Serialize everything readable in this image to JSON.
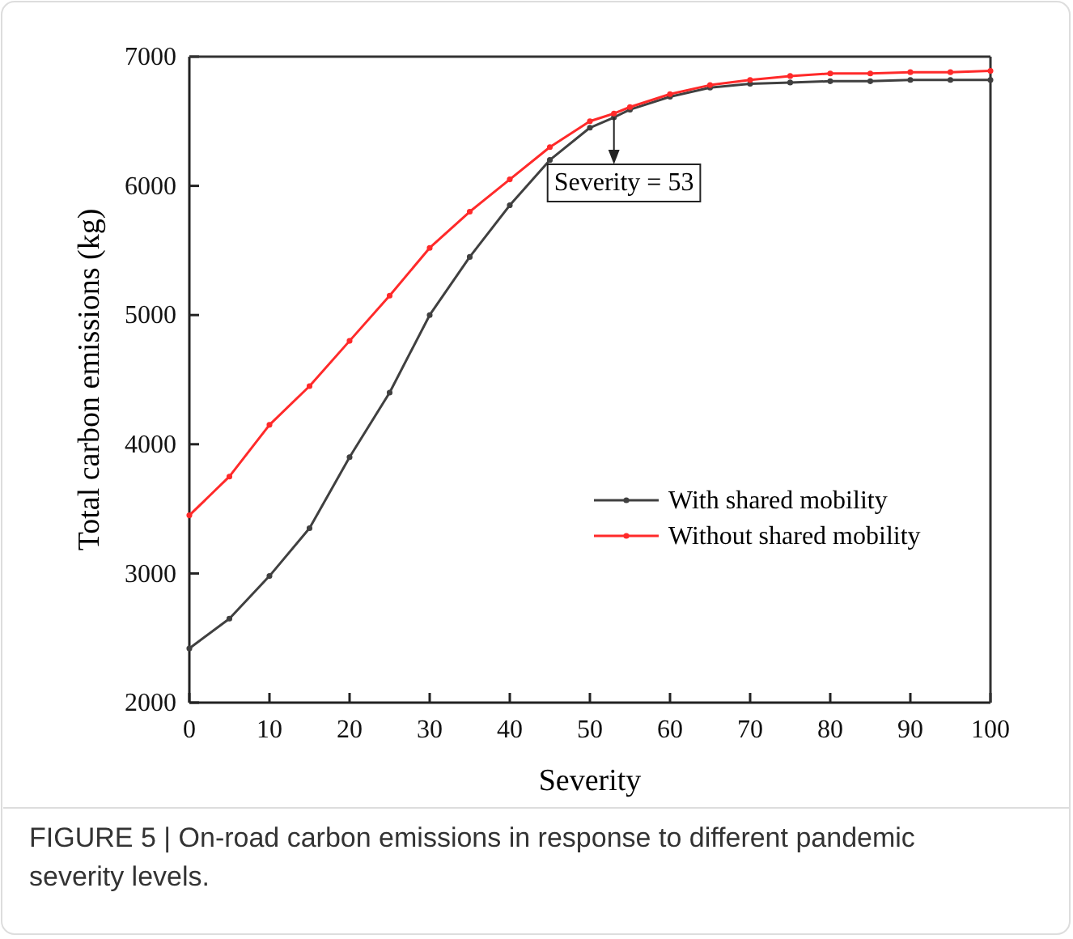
{
  "chart_data": {
    "type": "line",
    "xlabel": "Severity",
    "ylabel": "Total carbon emissions (kg)",
    "x": [
      0,
      5,
      10,
      15,
      20,
      25,
      30,
      35,
      40,
      45,
      50,
      53,
      55,
      60,
      65,
      70,
      75,
      80,
      85,
      90,
      95,
      100
    ],
    "series": [
      {
        "name": "With shared mobility",
        "color": "#404040",
        "values": [
          2420,
          2650,
          2980,
          3350,
          3900,
          4400,
          5000,
          5450,
          5850,
          6200,
          6450,
          6530,
          6590,
          6690,
          6760,
          6790,
          6800,
          6810,
          6810,
          6820,
          6820,
          6820
        ]
      },
      {
        "name": "Without shared mobility",
        "color": "#ff2a2a",
        "values": [
          3450,
          3750,
          4150,
          4450,
          4800,
          5150,
          5520,
          5800,
          6050,
          6300,
          6500,
          6560,
          6610,
          6710,
          6780,
          6820,
          6850,
          6870,
          6870,
          6880,
          6880,
          6890
        ]
      }
    ],
    "xlim": [
      0,
      100
    ],
    "xticks": [
      0,
      10,
      20,
      30,
      40,
      50,
      60,
      70,
      80,
      90,
      100
    ],
    "ylim": [
      2000,
      7000
    ],
    "yticks": [
      2000,
      3000,
      4000,
      5000,
      6000,
      7000
    ],
    "grid": false,
    "legend": "bottom right",
    "marker": "circle",
    "line_style": "solid",
    "annotations": [
      {
        "text": "Severity = 53",
        "x": 53,
        "y": 6530
      },
      "FIGURE 5 | On-road carbon emissions in response to different pandemic severity levels."
    ]
  }
}
